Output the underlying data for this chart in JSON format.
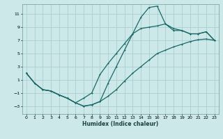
{
  "xlabel": "Humidex (Indice chaleur)",
  "bg_color": "#cce8e8",
  "grid_color": "#aacece",
  "line_color": "#1a6868",
  "xlim": [
    -0.5,
    23.5
  ],
  "ylim": [
    -4.2,
    12.5
  ],
  "xticks": [
    0,
    1,
    2,
    3,
    4,
    5,
    6,
    7,
    8,
    9,
    10,
    11,
    12,
    13,
    14,
    15,
    16,
    17,
    18,
    19,
    20,
    21,
    22,
    23
  ],
  "yticks": [
    -3,
    -1,
    1,
    3,
    5,
    7,
    9,
    11
  ],
  "curve1_x": [
    0,
    1,
    2,
    3,
    4,
    5,
    6,
    7,
    8,
    9,
    10,
    11,
    12,
    13,
    14,
    15,
    16,
    17,
    18,
    19,
    20,
    21,
    22,
    23
  ],
  "curve1_y": [
    2.0,
    0.5,
    -0.5,
    -0.7,
    -1.3,
    -1.8,
    -2.5,
    -3.0,
    -2.8,
    -2.3,
    -1.5,
    -0.5,
    0.8,
    2.0,
    3.0,
    4.0,
    5.0,
    5.5,
    6.0,
    6.4,
    6.8,
    7.1,
    7.2,
    7.0
  ],
  "curve2_x": [
    0,
    1,
    2,
    3,
    4,
    5,
    6,
    7,
    8,
    9,
    10,
    11,
    12,
    13,
    14,
    15,
    16,
    17,
    18,
    19,
    20,
    21,
    22,
    23
  ],
  "curve2_y": [
    2.0,
    0.5,
    -0.5,
    -0.7,
    -1.3,
    -1.8,
    -2.5,
    -3.0,
    -2.8,
    -2.3,
    0.5,
    3.0,
    5.5,
    8.0,
    10.5,
    12.0,
    12.2,
    9.5,
    8.5,
    8.5,
    8.0,
    8.0,
    8.3,
    7.0
  ],
  "curve3_x": [
    0,
    1,
    2,
    3,
    4,
    5,
    6,
    7,
    8,
    9,
    10,
    11,
    12,
    13,
    14,
    15,
    16,
    17,
    18,
    19,
    20,
    21,
    22,
    23
  ],
  "curve3_y": [
    2.0,
    0.5,
    -0.5,
    -0.7,
    -1.3,
    -1.8,
    -2.5,
    -1.8,
    -1.0,
    1.8,
    3.5,
    5.0,
    6.5,
    8.0,
    8.8,
    9.0,
    9.2,
    9.5,
    8.8,
    8.5,
    8.0,
    8.0,
    8.3,
    7.0
  ]
}
